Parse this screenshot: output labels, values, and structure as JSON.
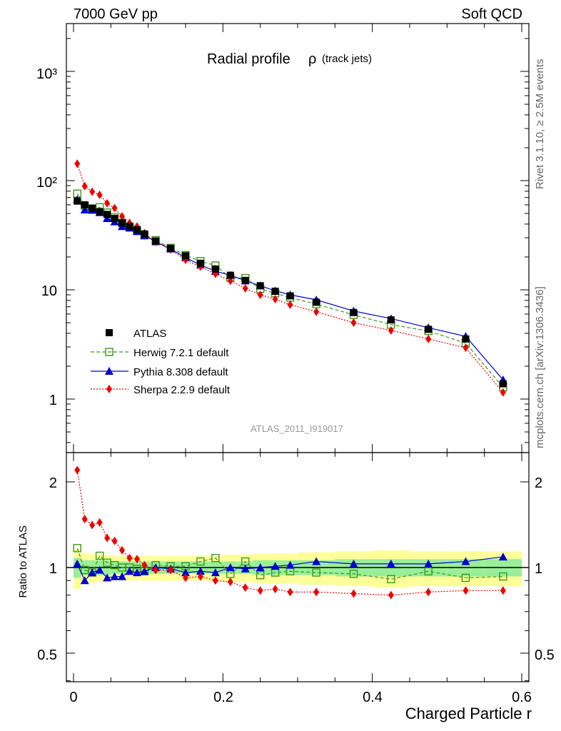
{
  "header": {
    "energy": "7000 GeV pp",
    "category": "Soft QCD"
  },
  "side": {
    "rivet": "Rivet 3.1.10, ≥ 2.5M events",
    "url": "mcplots.cern.ch [arXiv:1306.3436]"
  },
  "chart_data": {
    "type": "line",
    "title": "Radial profile",
    "title_symbol": "ρ",
    "title_note": "(track jets)",
    "watermark": "ATLAS_2011_I919017",
    "xlabel": "Charged Particle r",
    "ylabel_ratio": "Ratio to ATLAS",
    "xlim": [
      -0.005,
      0.605
    ],
    "ylim": [
      0.3,
      2500
    ],
    "yscale": "log",
    "ratio_ylim": [
      0.38,
      2.5
    ],
    "ratio_yscale": "log",
    "x_ticks": [
      "0",
      "0.2",
      "0.4",
      "0.6"
    ],
    "y_ticks": [
      "1",
      "10",
      "10²",
      "10³"
    ],
    "ratio_ticks": [
      "0.5",
      "1",
      "2"
    ],
    "legend_position": "center-left",
    "x": [
      0.005,
      0.015,
      0.025,
      0.035,
      0.045,
      0.055,
      0.065,
      0.075,
      0.085,
      0.095,
      0.11,
      0.13,
      0.15,
      0.17,
      0.19,
      0.21,
      0.23,
      0.25,
      0.27,
      0.29,
      0.325,
      0.375,
      0.425,
      0.475,
      0.525,
      0.575
    ],
    "series": [
      {
        "name": "ATLAS",
        "style": "data",
        "color": "#000000",
        "values": [
          65,
          60,
          56,
          52,
          49,
          45,
          41,
          38,
          35.5,
          32.5,
          28,
          24,
          20.5,
          17.5,
          15.5,
          13.6,
          12.2,
          10.9,
          9.7,
          8.8,
          7.7,
          6.2,
          5.3,
          4.35,
          3.55,
          1.38
        ]
      },
      {
        "name": "Herwig 7.2.1 default",
        "style": "dashed-open-square",
        "color": "#3a9a1a",
        "values": [
          76,
          59,
          54,
          57,
          51,
          46,
          41,
          38,
          35,
          31.5,
          28.5,
          24.2,
          20.8,
          18.3,
          16.7,
          12.9,
          12.8,
          10.2,
          9.3,
          8.5,
          7.4,
          5.9,
          4.8,
          4.2,
          3.25,
          1.28
        ]
      },
      {
        "name": "Pythia 8.308 default",
        "style": "solid-triangle",
        "color": "#0000cc",
        "values": [
          67,
          54,
          54,
          51,
          45,
          42,
          38,
          36.8,
          34.2,
          31.5,
          27.6,
          23.7,
          19.7,
          16.9,
          14.8,
          13.6,
          12.1,
          10.9,
          9.8,
          9.0,
          8.1,
          6.4,
          5.45,
          4.5,
          3.75,
          1.5
        ]
      },
      {
        "name": "Sherpa 2.2.9 default",
        "style": "dotted-diamond",
        "color": "#ee0000",
        "values": [
          143,
          89,
          79,
          74,
          62,
          56,
          47,
          41,
          38,
          33,
          27.4,
          23.4,
          18.8,
          16.3,
          14.0,
          12.1,
          10.3,
          9.0,
          8.2,
          7.3,
          6.3,
          5.0,
          4.25,
          3.55,
          2.95,
          1.15
        ]
      }
    ],
    "ratio_series": [
      {
        "name": "Herwig 7.2.1 default",
        "values": [
          1.17,
          0.98,
          0.96,
          1.1,
          1.04,
          1.02,
          1.0,
          1.0,
          0.99,
          0.97,
          1.02,
          1.01,
          1.01,
          1.05,
          1.08,
          0.95,
          1.05,
          0.94,
          0.96,
          0.97,
          0.96,
          0.95,
          0.91,
          0.97,
          0.92,
          0.93
        ]
      },
      {
        "name": "Pythia 8.308 default",
        "values": [
          1.03,
          0.9,
          0.96,
          0.98,
          0.92,
          0.93,
          0.93,
          0.97,
          0.96,
          0.97,
          1.0,
          0.99,
          0.96,
          0.97,
          0.96,
          1.0,
          0.99,
          1.0,
          1.01,
          1.02,
          1.05,
          1.03,
          1.03,
          1.03,
          1.05,
          1.09
        ]
      },
      {
        "name": "Sherpa 2.2.9 default",
        "values": [
          2.2,
          1.48,
          1.41,
          1.44,
          1.27,
          1.24,
          1.15,
          1.08,
          1.07,
          1.02,
          0.98,
          0.98,
          0.92,
          0.93,
          0.9,
          0.89,
          0.85,
          0.83,
          0.84,
          0.82,
          0.82,
          0.81,
          0.8,
          0.82,
          0.83,
          0.83
        ]
      }
    ],
    "uncertainty_band": {
      "inner_color": "#99ee99",
      "outer_color": "#ffff99",
      "inner_halfwidth": [
        0.08,
        0.06,
        0.06,
        0.06,
        0.06,
        0.05,
        0.05,
        0.05,
        0.05,
        0.05,
        0.05,
        0.05,
        0.05,
        0.05,
        0.05,
        0.05,
        0.05,
        0.06,
        0.06,
        0.06,
        0.06,
        0.07,
        0.07,
        0.07,
        0.07,
        0.07
      ],
      "outer_halfwidth": [
        0.16,
        0.12,
        0.12,
        0.11,
        0.11,
        0.1,
        0.1,
        0.1,
        0.1,
        0.1,
        0.1,
        0.1,
        0.1,
        0.1,
        0.1,
        0.11,
        0.11,
        0.12,
        0.12,
        0.12,
        0.13,
        0.14,
        0.15,
        0.14,
        0.14,
        0.14
      ]
    }
  }
}
